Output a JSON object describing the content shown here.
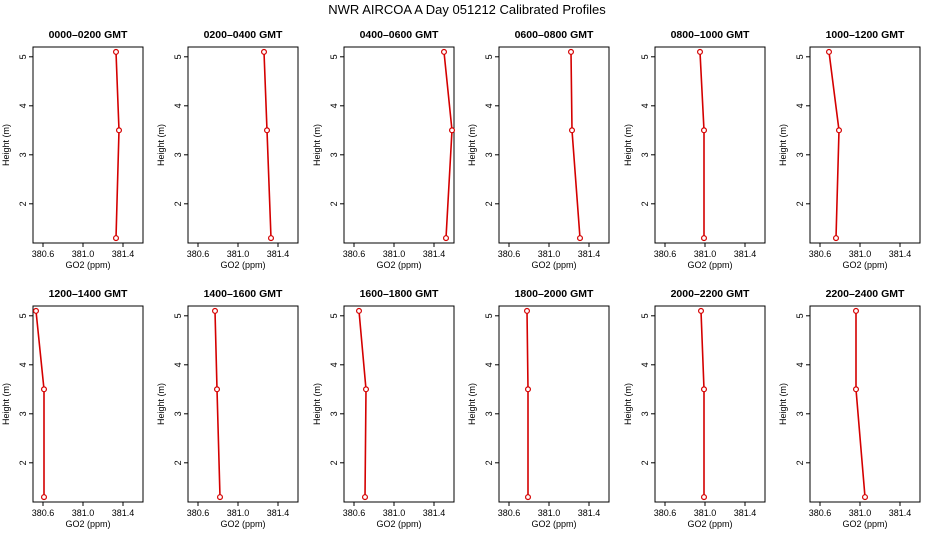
{
  "chart_data": {
    "title": "NWR AIRCOA A  Day 051212  Calibrated Profiles",
    "panels": [
      {
        "type": "line",
        "title": "0000–0200 GMT",
        "xlabel": "GO2 (ppm)",
        "ylabel": "Height (m)",
        "xlim": [
          380.5,
          381.6
        ],
        "ylim": [
          1.2,
          5.2
        ],
        "x_ticks": [
          "380.6",
          "381.0",
          "381.4"
        ],
        "y_ticks": [
          "2",
          "3",
          "4",
          "5"
        ],
        "x": [
          381.33,
          381.36,
          381.33
        ],
        "y": [
          1.3,
          3.5,
          5.1
        ]
      },
      {
        "type": "line",
        "title": "0200–0400 GMT",
        "xlabel": "GO2 (ppm)",
        "ylabel": "Height (m)",
        "xlim": [
          380.5,
          381.6
        ],
        "ylim": [
          1.2,
          5.2
        ],
        "x_ticks": [
          "380.6",
          "381.0",
          "381.4"
        ],
        "y_ticks": [
          "2",
          "3",
          "4",
          "5"
        ],
        "x": [
          381.33,
          381.29,
          381.26
        ],
        "y": [
          1.3,
          3.5,
          5.1
        ]
      },
      {
        "type": "line",
        "title": "0400–0600 GMT",
        "xlabel": "GO2 (ppm)",
        "ylabel": "Height (m)",
        "xlim": [
          380.5,
          381.6
        ],
        "ylim": [
          1.2,
          5.2
        ],
        "x_ticks": [
          "380.6",
          "381.0",
          "381.4"
        ],
        "y_ticks": [
          "2",
          "3",
          "4",
          "5"
        ],
        "x": [
          381.52,
          381.58,
          381.5
        ],
        "y": [
          1.3,
          3.5,
          5.1
        ]
      },
      {
        "type": "line",
        "title": "0600–0800 GMT",
        "xlabel": "GO2 (ppm)",
        "ylabel": "Height (m)",
        "xlim": [
          380.5,
          381.6
        ],
        "ylim": [
          1.2,
          5.2
        ],
        "x_ticks": [
          "380.6",
          "381.0",
          "381.4"
        ],
        "y_ticks": [
          "2",
          "3",
          "4",
          "5"
        ],
        "x": [
          381.31,
          381.23,
          381.22
        ],
        "y": [
          1.3,
          3.5,
          5.1
        ]
      },
      {
        "type": "line",
        "title": "0800–1000 GMT",
        "xlabel": "GO2 (ppm)",
        "ylabel": "Height (m)",
        "xlim": [
          380.5,
          381.6
        ],
        "ylim": [
          1.2,
          5.2
        ],
        "x_ticks": [
          "380.6",
          "381.0",
          "381.4"
        ],
        "y_ticks": [
          "2",
          "3",
          "4",
          "5"
        ],
        "x": [
          380.99,
          380.99,
          380.95
        ],
        "y": [
          1.3,
          3.5,
          5.1
        ]
      },
      {
        "type": "line",
        "title": "1000–1200 GMT",
        "xlabel": "GO2 (ppm)",
        "ylabel": "Height (m)",
        "xlim": [
          380.5,
          381.6
        ],
        "ylim": [
          1.2,
          5.2
        ],
        "x_ticks": [
          "380.6",
          "381.0",
          "381.4"
        ],
        "y_ticks": [
          "2",
          "3",
          "4",
          "5"
        ],
        "x": [
          380.76,
          380.79,
          380.69
        ],
        "y": [
          1.3,
          3.5,
          5.1
        ]
      },
      {
        "type": "line",
        "title": "1200–1400 GMT",
        "xlabel": "GO2 (ppm)",
        "ylabel": "Height (m)",
        "xlim": [
          380.5,
          381.6
        ],
        "ylim": [
          1.2,
          5.2
        ],
        "x_ticks": [
          "380.6",
          "381.0",
          "381.4"
        ],
        "y_ticks": [
          "2",
          "3",
          "4",
          "5"
        ],
        "x": [
          380.61,
          380.61,
          380.53
        ],
        "y": [
          1.3,
          3.5,
          5.1
        ]
      },
      {
        "type": "line",
        "title": "1400–1600 GMT",
        "xlabel": "GO2 (ppm)",
        "ylabel": "Height (m)",
        "xlim": [
          380.5,
          381.6
        ],
        "ylim": [
          1.2,
          5.2
        ],
        "x_ticks": [
          "380.6",
          "381.0",
          "381.4"
        ],
        "y_ticks": [
          "2",
          "3",
          "4",
          "5"
        ],
        "x": [
          380.82,
          380.79,
          380.77
        ],
        "y": [
          1.3,
          3.5,
          5.1
        ]
      },
      {
        "type": "line",
        "title": "1600–1800 GMT",
        "xlabel": "GO2 (ppm)",
        "ylabel": "Height (m)",
        "xlim": [
          380.5,
          381.6
        ],
        "ylim": [
          1.2,
          5.2
        ],
        "x_ticks": [
          "380.6",
          "381.0",
          "381.4"
        ],
        "y_ticks": [
          "2",
          "3",
          "4",
          "5"
        ],
        "x": [
          380.71,
          380.72,
          380.65
        ],
        "y": [
          1.3,
          3.5,
          5.1
        ]
      },
      {
        "type": "line",
        "title": "1800–2000 GMT",
        "xlabel": "GO2 (ppm)",
        "ylabel": "Height (m)",
        "xlim": [
          380.5,
          381.6
        ],
        "ylim": [
          1.2,
          5.2
        ],
        "x_ticks": [
          "380.6",
          "381.0",
          "381.4"
        ],
        "y_ticks": [
          "2",
          "3",
          "4",
          "5"
        ],
        "x": [
          380.79,
          380.79,
          380.78
        ],
        "y": [
          1.3,
          3.5,
          5.1
        ]
      },
      {
        "type": "line",
        "title": "2000–2200 GMT",
        "xlabel": "GO2 (ppm)",
        "ylabel": "Height (m)",
        "xlim": [
          380.5,
          381.6
        ],
        "ylim": [
          1.2,
          5.2
        ],
        "x_ticks": [
          "380.6",
          "381.0",
          "381.4"
        ],
        "y_ticks": [
          "2",
          "3",
          "4",
          "5"
        ],
        "x": [
          380.99,
          380.99,
          380.96
        ],
        "y": [
          1.3,
          3.5,
          5.1
        ]
      },
      {
        "type": "line",
        "title": "2200–2400 GMT",
        "xlabel": "GO2 (ppm)",
        "ylabel": "Height (m)",
        "xlim": [
          380.5,
          381.6
        ],
        "ylim": [
          1.2,
          5.2
        ],
        "x_ticks": [
          "380.6",
          "381.0",
          "381.4"
        ],
        "y_ticks": [
          "2",
          "3",
          "4",
          "5"
        ],
        "x": [
          381.05,
          380.96,
          380.96
        ],
        "y": [
          1.3,
          3.5,
          5.1
        ]
      }
    ],
    "series_color": "#d40000",
    "grid": false,
    "legend": "none"
  }
}
